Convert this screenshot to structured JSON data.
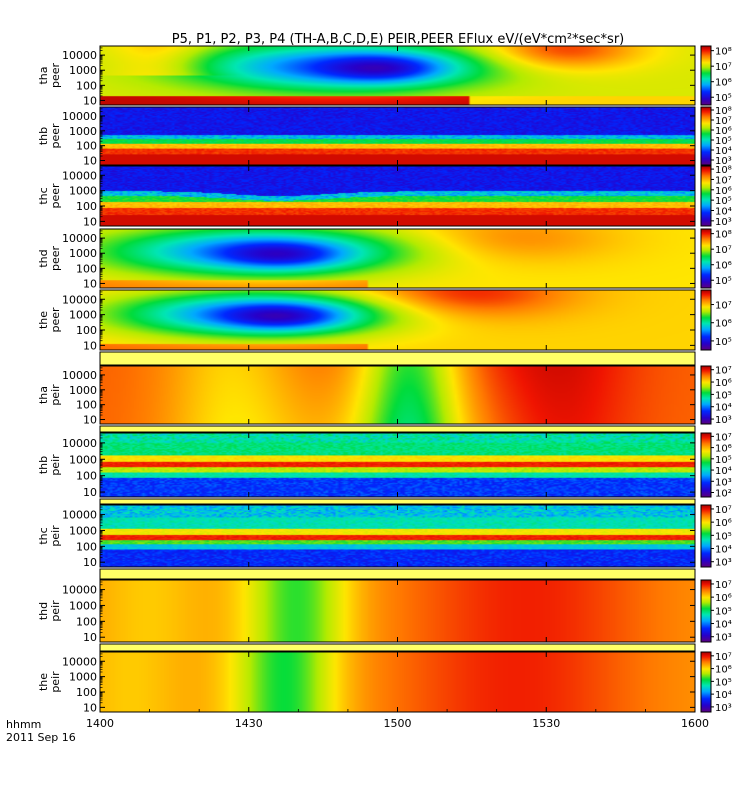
{
  "chart_data": {
    "type": "heatmap",
    "title": "P5, P1, P2, P3, P4 (TH-A,B,C,D,E) PEIR,PEER EFlux eV/(eV*cm²*sec*sr)",
    "x_axis": {
      "ticks": [
        "1400",
        "1430",
        "1500",
        "1530",
        "1600"
      ],
      "range_minutes": [
        0,
        120
      ],
      "tick_minutes": [
        0,
        30,
        60,
        90,
        120
      ],
      "label_line1": "hhmm",
      "label_line2": "2011 Sep 16"
    },
    "panels": [
      {
        "probe": "tha",
        "product": "peer",
        "y_ticks": [
          "10000",
          "1000",
          "100",
          "10"
        ],
        "y_range": [
          5,
          40000
        ],
        "cbar_ticks": [
          "10⁸",
          "10⁷",
          "10⁶",
          "10⁵"
        ],
        "cbar_log_range": [
          4.5,
          8.3
        ],
        "pattern": "electron-smooth-a"
      },
      {
        "probe": "thb",
        "product": "peer",
        "y_ticks": [
          "10000",
          "1000",
          "100",
          "10"
        ],
        "y_range": [
          5,
          40000
        ],
        "cbar_ticks": [
          "10⁸",
          "10⁷",
          "10⁶",
          "10⁵",
          "10⁴",
          "10³"
        ],
        "cbar_log_range": [
          2.5,
          8.3
        ],
        "pattern": "electron-noisy-b"
      },
      {
        "probe": "thc",
        "product": "peer",
        "y_ticks": [
          "10000",
          "1000",
          "100",
          "10"
        ],
        "y_range": [
          5,
          40000
        ],
        "cbar_ticks": [
          "10⁸",
          "10⁷",
          "10⁶",
          "10⁵",
          "10⁴",
          "10³"
        ],
        "cbar_log_range": [
          2.5,
          8.3
        ],
        "pattern": "electron-noisy-c"
      },
      {
        "probe": "thd",
        "product": "peer",
        "y_ticks": [
          "10000",
          "1000",
          "100",
          "10"
        ],
        "y_range": [
          5,
          40000
        ],
        "cbar_ticks": [
          "10⁸",
          "10⁷",
          "10⁶",
          "10⁵"
        ],
        "cbar_log_range": [
          4.5,
          8.3
        ],
        "pattern": "electron-smooth-d"
      },
      {
        "probe": "the",
        "product": "peer",
        "y_ticks": [
          "10000",
          "1000",
          "100",
          "10"
        ],
        "y_range": [
          5,
          40000
        ],
        "cbar_ticks": [
          "10⁷",
          "10⁶",
          "10⁵"
        ],
        "cbar_log_range": [
          4.5,
          7.8
        ],
        "pattern": "electron-smooth-e"
      },
      {
        "probe": "tha",
        "product": "peir",
        "y_ticks": [
          "10000",
          "1000",
          "100",
          "10"
        ],
        "y_range": [
          5,
          40000
        ],
        "cbar_ticks": [
          "10⁷",
          "10⁶",
          "10⁵",
          "10⁴",
          "10³"
        ],
        "cbar_log_range": [
          2.6,
          7.3
        ],
        "pattern": "ion-smooth-a"
      },
      {
        "probe": "thb",
        "product": "peir",
        "y_ticks": [
          "10000",
          "1000",
          "100",
          "10"
        ],
        "y_range": [
          5,
          40000
        ],
        "cbar_ticks": [
          "10⁷",
          "10⁶",
          "10⁵",
          "10⁴",
          "10³",
          "10²"
        ],
        "cbar_log_range": [
          1.6,
          7.3
        ],
        "pattern": "ion-noisy-b"
      },
      {
        "probe": "thc",
        "product": "peir",
        "y_ticks": [
          "10000",
          "1000",
          "100",
          "10"
        ],
        "y_range": [
          5,
          40000
        ],
        "cbar_ticks": [
          "10⁷",
          "10⁶",
          "10⁵",
          "10⁴",
          "10³"
        ],
        "cbar_log_range": [
          2.6,
          7.3
        ],
        "pattern": "ion-noisy-c"
      },
      {
        "probe": "thd",
        "product": "peir",
        "y_ticks": [
          "10000",
          "1000",
          "100",
          "10"
        ],
        "y_range": [
          5,
          40000
        ],
        "cbar_ticks": [
          "10⁷",
          "10⁶",
          "10⁵",
          "10⁴",
          "10³"
        ],
        "cbar_log_range": [
          2.6,
          7.3
        ],
        "pattern": "ion-smooth-d"
      },
      {
        "probe": "the",
        "product": "peir",
        "y_ticks": [
          "10000",
          "1000",
          "100",
          "10"
        ],
        "y_range": [
          5,
          40000
        ],
        "cbar_ticks": [
          "10⁷",
          "10⁶",
          "10⁵",
          "10⁴",
          "10³"
        ],
        "cbar_log_range": [
          2.6,
          7.3
        ],
        "pattern": "ion-smooth-e"
      }
    ]
  }
}
